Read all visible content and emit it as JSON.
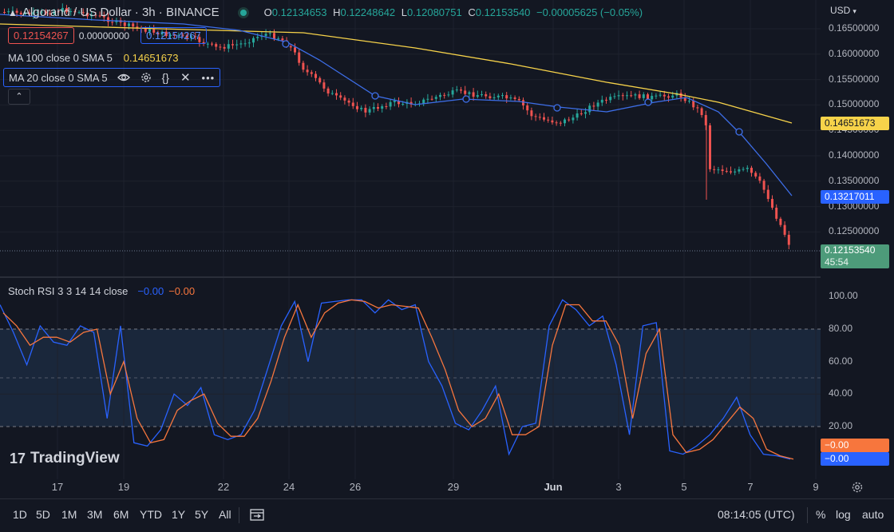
{
  "header": {
    "symbol_title": "Algorand / US Dollar · 3h · BINANCE",
    "ohlc": {
      "o_label": "O",
      "o_value": "0.12134653",
      "h_label": "H",
      "h_value": "0.12248642",
      "l_label": "L",
      "l_value": "0.12080751",
      "c_label": "C",
      "c_value": "0.12153540",
      "change": "−0.00005625 (−0.05%)"
    },
    "currency": "USD",
    "bid": "0.12154267",
    "spread": "0.00000000",
    "ask": "0.12154267"
  },
  "indicators": {
    "ma100": {
      "label": "MA 100 close 0 SMA 5",
      "value": "0.14651673",
      "color": "#f7d34a"
    },
    "ma20": {
      "label": "MA 20 close 0 SMA 5",
      "color": "#3d6ee8"
    },
    "stoch": {
      "label": "Stoch RSI 3 3 14 14 close",
      "k_value": "−0.00",
      "d_value": "−0.00",
      "k_color": "#2962ff",
      "d_color": "#f7763d"
    }
  },
  "price_scale": {
    "ticks": [
      "0.16500000",
      "0.16000000",
      "0.15500000",
      "0.15000000",
      "0.14500000",
      "0.14000000",
      "0.13500000",
      "0.13000000",
      "0.12500000"
    ],
    "ma100_badge": "0.14651673",
    "ma20_badge": "0.13217011",
    "last_price_badge": "0.12153540",
    "countdown": "45:54"
  },
  "osc_scale": {
    "ticks": [
      "100.00",
      "80.00",
      "60.00",
      "40.00",
      "20.00"
    ],
    "d_badge": "−0.00",
    "k_badge": "−0.00"
  },
  "time_axis": {
    "labels": [
      "17",
      "19",
      "22",
      "24",
      "26",
      "29",
      "Jun",
      "3",
      "5",
      "7",
      "9"
    ]
  },
  "watermark": "TradingView",
  "bottom_bar": {
    "timeframes": [
      "1D",
      "5D",
      "1M",
      "3M",
      "6M",
      "YTD",
      "1Y",
      "5Y",
      "All"
    ],
    "clock": "08:14:05 (UTC)",
    "percent": "%",
    "log": "log",
    "auto": "auto"
  },
  "colors": {
    "up": "#26a69a",
    "down": "#ef5350",
    "background": "#131722"
  },
  "chart_data": [
    {
      "type": "line",
      "title": "Algorand / US Dollar · 3h · BINANCE",
      "ylim": [
        0.1215,
        0.1675
      ],
      "series": [
        {
          "name": "MA 100 close 0 SMA 5",
          "x": [
            "May 15",
            "May 17",
            "May 19",
            "May 22",
            "May 24",
            "May 26",
            "May 29",
            "Jun 1",
            "Jun 3",
            "Jun 5",
            "Jun 7",
            "Jun 8"
          ],
          "values": [
            0.1675,
            0.167,
            0.1665,
            0.1655,
            0.1645,
            0.161,
            0.157,
            0.155,
            0.153,
            0.1515,
            0.149,
            0.1465
          ]
        },
        {
          "name": "MA 20 close 0 SMA 5",
          "x": [
            "May 15",
            "May 17",
            "May 19",
            "May 22",
            "May 24",
            "May 26",
            "May 29",
            "Jun 1",
            "Jun 3",
            "Jun 5",
            "Jun 7",
            "Jun 8"
          ],
          "values": [
            0.1665,
            0.1665,
            0.165,
            0.1635,
            0.1615,
            0.152,
            0.151,
            0.1497,
            0.15,
            0.151,
            0.145,
            0.1322
          ]
        }
      ],
      "candles_close": {
        "x": [
          "May 15",
          "May 17",
          "May 19",
          "May 22",
          "May 23",
          "May 24",
          "May 25",
          "May 26",
          "May 28",
          "May 29",
          "May 31",
          "Jun 1",
          "Jun 2",
          "Jun 3",
          "Jun 4",
          "Jun 5",
          "Jun 5.5",
          "Jun 6",
          "Jun 7",
          "Jun 7.5",
          "Jun 8"
        ],
        "values": [
          0.168,
          0.167,
          0.166,
          0.162,
          0.164,
          0.16,
          0.152,
          0.148,
          0.15,
          0.152,
          0.15,
          0.148,
          0.15,
          0.152,
          0.151,
          0.152,
          0.138,
          0.136,
          0.134,
          0.126,
          0.1215
        ]
      }
    },
    {
      "type": "line",
      "title": "Stoch RSI 3 3 14 14 close",
      "ylim": [
        0,
        100
      ],
      "series": [
        {
          "name": "K",
          "values": [
            95,
            78,
            58,
            82,
            72,
            70,
            82,
            78,
            25,
            82,
            10,
            8,
            18,
            40,
            33,
            44,
            15,
            12,
            15,
            30,
            56,
            82,
            97,
            60,
            96,
            97,
            98,
            98,
            90,
            98,
            92,
            95,
            60,
            45,
            22,
            18,
            30,
            45,
            3,
            20,
            22,
            82,
            98,
            92,
            82,
            88,
            58,
            15,
            82,
            84,
            5,
            3,
            8,
            15,
            25,
            38,
            15,
            3,
            2,
            0
          ]
        },
        {
          "name": "D",
          "values": [
            90,
            82,
            70,
            75,
            75,
            72,
            78,
            80,
            40,
            60,
            25,
            10,
            12,
            30,
            36,
            40,
            22,
            14,
            14,
            25,
            48,
            75,
            95,
            75,
            90,
            96,
            98,
            97,
            93,
            95,
            94,
            93,
            75,
            55,
            30,
            20,
            25,
            40,
            15,
            15,
            20,
            70,
            95,
            95,
            85,
            85,
            70,
            25,
            65,
            80,
            15,
            4,
            6,
            12,
            22,
            32,
            25,
            6,
            2,
            0
          ]
        }
      ]
    }
  ]
}
